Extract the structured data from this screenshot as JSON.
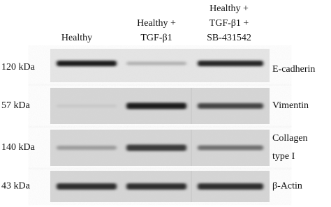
{
  "columns": [
    {
      "lines": [
        "Healthy"
      ]
    },
    {
      "lines": [
        "Healthy +",
        "TGF-β1"
      ]
    },
    {
      "lines": [
        "Healthy +",
        "TGF-β1 +",
        "SB-431542"
      ]
    }
  ],
  "rows": [
    {
      "weight": "120 kDa",
      "label": [
        "E-cadherin"
      ]
    },
    {
      "weight": "57 kDa",
      "label": [
        "Vimentin"
      ]
    },
    {
      "weight": "140 kDa",
      "label": [
        "Collagen",
        "type I"
      ]
    },
    {
      "weight": "43 kDa",
      "label": [
        "β-Actin"
      ]
    }
  ]
}
